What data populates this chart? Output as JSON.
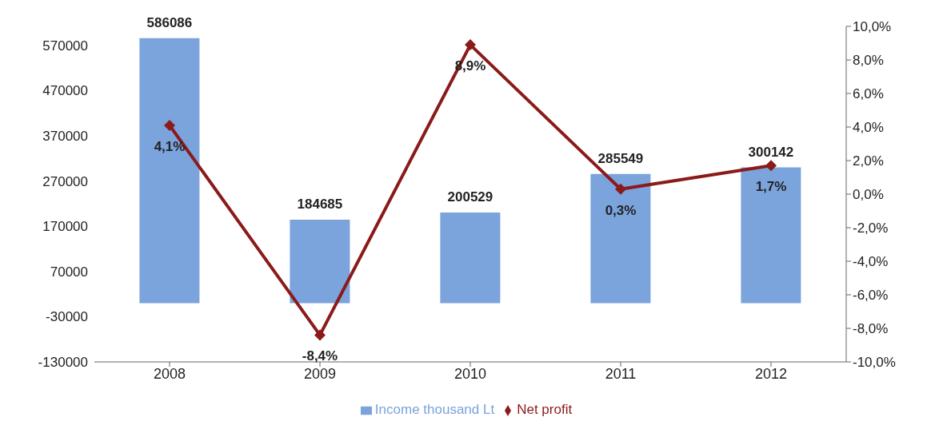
{
  "chart_data": {
    "type": "bar",
    "categories": [
      "2008",
      "2009",
      "2010",
      "2011",
      "2012"
    ],
    "series": [
      {
        "name": "Income thousand Lt",
        "color": "#7ba3dc",
        "values": [
          586086,
          184685,
          200529,
          285549,
          300142
        ],
        "value_labels": [
          "586086",
          "184685",
          "200529",
          "285549",
          "300142"
        ]
      },
      {
        "name": "Net profit",
        "type": "line",
        "axis": "y2",
        "color": "#8b1a1a",
        "marker": "diamond",
        "values": [
          4.1,
          -8.4,
          8.9,
          0.3,
          1.7
        ],
        "value_labels": [
          "4,1%",
          "-8,4%",
          "8,9%",
          "0,3%",
          "1,7%"
        ]
      }
    ],
    "ylim": [
      -130000,
      612000
    ],
    "yticks": [
      -130000,
      -30000,
      70000,
      170000,
      270000,
      370000,
      470000,
      570000
    ],
    "y2lim": [
      -10,
      10
    ],
    "y2ticks": [
      {
        "value": -10,
        "label": "-10,0%"
      },
      {
        "value": -8,
        "label": "-8,0%"
      },
      {
        "value": -6,
        "label": "-6,0%"
      },
      {
        "value": -4,
        "label": "-4,0%"
      },
      {
        "value": -2,
        "label": "-2,0%"
      },
      {
        "value": 0,
        "label": "0,0%"
      },
      {
        "value": 2,
        "label": "2,0%"
      },
      {
        "value": 4,
        "label": "4,0%"
      },
      {
        "value": 6,
        "label": "6,0%"
      },
      {
        "value": 8,
        "label": "8,0%"
      },
      {
        "value": 10,
        "label": "10,0%"
      }
    ],
    "legend": "bottom"
  }
}
